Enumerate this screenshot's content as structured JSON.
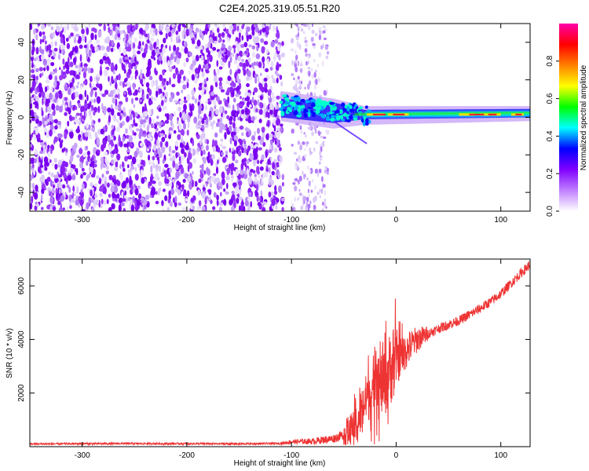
{
  "title": "C2E4.2025.319.05.51.R20",
  "chart_data": [
    {
      "type": "heatmap",
      "title": "C2E4.2025.319.05.51.R20",
      "xlabel": "Height of straight line (km)",
      "ylabel": "Frequency (Hz)",
      "xlim": [
        -350,
        128
      ],
      "ylim": [
        -50,
        50
      ],
      "xticks": [
        -300,
        -200,
        -100,
        0,
        100
      ],
      "yticks": [
        -40,
        -20,
        0,
        20,
        40
      ],
      "colorbar": {
        "label": "Normalized spectral amplitude",
        "range": [
          0,
          1
        ],
        "ticks": [
          "0.0",
          "0.2",
          "0.4",
          "0.6",
          "0.8"
        ],
        "colors": [
          "#ffffff",
          "#c080ff",
          "#8000ff",
          "#0000ff",
          "#00ffff",
          "#00ff00",
          "#ffff00",
          "#ff8000",
          "#ff0000",
          "#ff00aa"
        ]
      },
      "features": {
        "noise_region_km": [
          -350,
          -108
        ],
        "sparse_noise_region_km": [
          -100,
          -65
        ],
        "signal_onset_km": -110,
        "signal_frequency_hz": 1.5,
        "signal_peak_amplitude": 0.9
      }
    },
    {
      "type": "line",
      "xlabel": "Height of straight line (km)",
      "ylabel": "SNR (10 * v/v)",
      "xlim": [
        -350,
        128
      ],
      "ylim": [
        0,
        7000
      ],
      "xticks": [
        -300,
        -200,
        -100,
        0,
        100
      ],
      "yticks": [
        2000,
        4000,
        6000
      ],
      "series": [
        {
          "name": "SNR",
          "color": "#ee3333",
          "x": [
            -350,
            -300,
            -250,
            -200,
            -150,
            -110,
            -100,
            -80,
            -60,
            -50,
            -40,
            -35,
            -30,
            -25,
            -20,
            -15,
            -10,
            -5,
            0,
            10,
            20,
            40,
            60,
            80,
            90,
            100,
            110,
            120,
            128
          ],
          "y": [
            100,
            110,
            115,
            110,
            105,
            120,
            180,
            200,
            300,
            450,
            700,
            1100,
            1700,
            2000,
            1800,
            2300,
            2500,
            3000,
            3200,
            3600,
            4000,
            4400,
            4700,
            5150,
            5400,
            5700,
            6100,
            6500,
            6800
          ]
        }
      ]
    }
  ]
}
